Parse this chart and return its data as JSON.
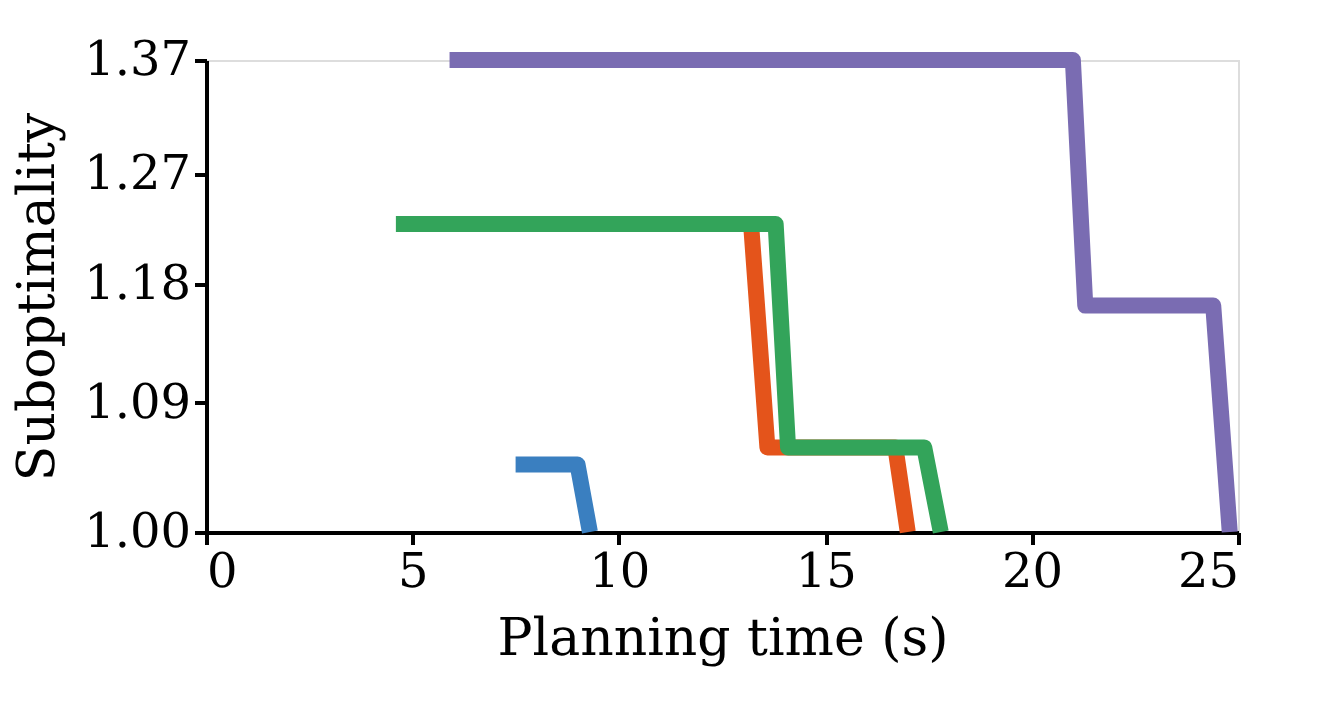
{
  "chart_data": {
    "type": "line",
    "xlabel": "Planning time (s)",
    "ylabel": "Suboptimality",
    "log": "y",
    "xlim": [
      0,
      25
    ],
    "xticks": [
      0,
      5,
      10,
      15,
      20,
      25
    ],
    "ylim": [
      1.0,
      1.37
    ],
    "yticks": [
      {
        "value": 1.0,
        "label": "1.00"
      },
      1.09,
      1.18,
      1.27,
      1.37
    ],
    "grid": false,
    "marker": "none",
    "line_style": "solid",
    "series": [
      {
        "color": "#3a7fc0",
        "x": [
          7.5,
          9.0,
          9.3
        ],
        "values": [
          1.046,
          1.046,
          1.0
        ]
      },
      {
        "color": "#e4541b",
        "x": [
          13.2,
          13.6,
          16.7,
          17.0
        ],
        "values": [
          1.23,
          1.058,
          1.058,
          1.0
        ]
      },
      {
        "color": "#33a45a",
        "x": [
          4.6,
          13.8,
          14.1,
          17.4,
          17.8
        ],
        "values": [
          1.228,
          1.228,
          1.058,
          1.058,
          1.0
        ]
      },
      {
        "color": "#7a6cb2",
        "x": [
          5.9,
          21.0,
          21.3,
          24.4,
          24.8
        ],
        "values": [
          1.37,
          1.37,
          1.163,
          1.163,
          1.0
        ]
      }
    ]
  }
}
